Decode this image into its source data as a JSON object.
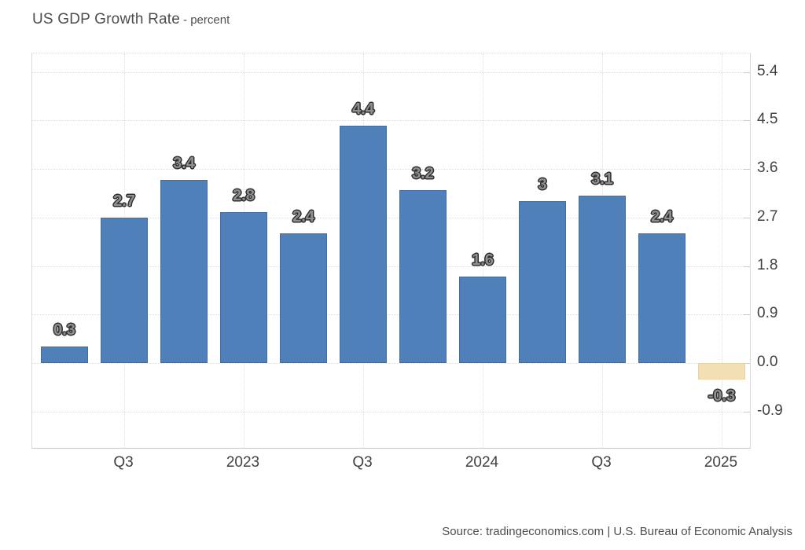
{
  "title": {
    "main": "US GDP Growth Rate",
    "subtitle": "- percent"
  },
  "source": "Source: tradingeconomics.com | U.S. Bureau of Economic Analysis",
  "colors": {
    "bar_positive": "#4f80ba",
    "bar_negative": "#f3dfb4",
    "grid": "#dedede",
    "axis_text": "#414141",
    "title_text": "#4d4d4d",
    "source_text": "#4d4d4d",
    "bar_label_fill": "#8f8f8f",
    "bar_label_outline": "#2e2e2e"
  },
  "chart_data": {
    "type": "bar",
    "title": "US GDP Growth Rate",
    "ylabel": "percent",
    "values": [
      0.3,
      2.7,
      3.4,
      2.8,
      2.4,
      4.4,
      3.2,
      1.6,
      3,
      3.1,
      2.4,
      -0.3
    ],
    "bar_labels": [
      "0.3",
      "2.7",
      "3.4",
      "2.8",
      "2.4",
      "4.4",
      "3.2",
      "1.6",
      "3",
      "3.1",
      "2.4",
      "-0.3"
    ],
    "x_ticks": [
      {
        "label": "Q3",
        "bar_index": 1
      },
      {
        "label": "2023",
        "bar_index": 3
      },
      {
        "label": "Q3",
        "bar_index": 5
      },
      {
        "label": "2024",
        "bar_index": 7
      },
      {
        "label": "Q3",
        "bar_index": 9
      },
      {
        "label": "2025",
        "bar_index": 11
      }
    ],
    "y_ticks": [
      5.4,
      4.5,
      3.6,
      2.7,
      1.8,
      0.9,
      0.0,
      -0.9
    ],
    "y_tick_labels": [
      "5.4",
      "4.5",
      "3.6",
      "2.7",
      "1.8",
      "0.9",
      "0.0",
      "-0.9"
    ],
    "ylim": [
      -1.6,
      5.75
    ],
    "y_axis_side": "right",
    "grid": "dotted",
    "legend": "none",
    "negative_bar_indices": [
      11
    ]
  }
}
